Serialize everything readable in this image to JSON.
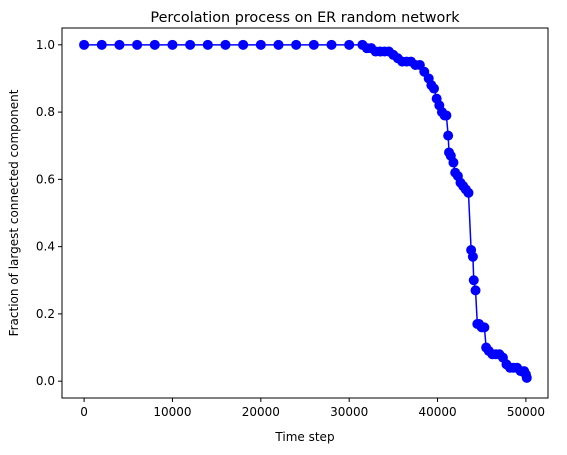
{
  "chart_data": {
    "type": "line",
    "title": "Percolation process on ER random network",
    "xlabel": "Time step",
    "ylabel": "Fraction of largest connected component",
    "xlim": [
      -2500,
      52500
    ],
    "ylim": [
      -0.05,
      1.05
    ],
    "xticks": [
      0,
      10000,
      20000,
      30000,
      40000,
      50000
    ],
    "yticks": [
      0.0,
      0.2,
      0.4,
      0.6,
      0.8,
      1.0
    ],
    "xtick_labels": [
      "0",
      "10000",
      "20000",
      "30000",
      "40000",
      "50000"
    ],
    "ytick_labels": [
      "0.0",
      "0.2",
      "0.4",
      "0.6",
      "0.8",
      "1.0"
    ],
    "grid": false,
    "legend": "none",
    "series": [
      {
        "color": "#0000ff",
        "marker": "circle",
        "x": [
          0,
          2000,
          4000,
          6000,
          8000,
          10000,
          12000,
          14000,
          16000,
          18000,
          20000,
          22000,
          24000,
          26000,
          28000,
          30000,
          31500,
          32000,
          32500,
          33000,
          33500,
          34000,
          34500,
          35000,
          35500,
          36000,
          36500,
          37000,
          37500,
          38000,
          38500,
          39000,
          39300,
          39600,
          39900,
          40200,
          40500,
          40800,
          41000,
          41200,
          41300,
          41500,
          41800,
          42000,
          42300,
          42600,
          42900,
          43200,
          43500,
          43800,
          44000,
          44100,
          44300,
          44500,
          44700,
          45000,
          45300,
          45500,
          45800,
          46200,
          46600,
          47000,
          47400,
          47800,
          48200,
          48600,
          49000,
          49400,
          49800,
          50000,
          50100
        ],
        "y": [
          1.0,
          1.0,
          1.0,
          1.0,
          1.0,
          1.0,
          1.0,
          1.0,
          1.0,
          1.0,
          1.0,
          1.0,
          1.0,
          1.0,
          1.0,
          1.0,
          1.0,
          0.99,
          0.99,
          0.98,
          0.98,
          0.98,
          0.98,
          0.97,
          0.96,
          0.95,
          0.95,
          0.95,
          0.94,
          0.94,
          0.92,
          0.9,
          0.88,
          0.87,
          0.84,
          0.82,
          0.8,
          0.79,
          0.79,
          0.73,
          0.68,
          0.67,
          0.65,
          0.62,
          0.61,
          0.59,
          0.58,
          0.57,
          0.56,
          0.39,
          0.37,
          0.3,
          0.27,
          0.17,
          0.17,
          0.16,
          0.16,
          0.1,
          0.09,
          0.08,
          0.08,
          0.08,
          0.07,
          0.05,
          0.04,
          0.04,
          0.04,
          0.03,
          0.03,
          0.02,
          0.01
        ]
      }
    ]
  }
}
